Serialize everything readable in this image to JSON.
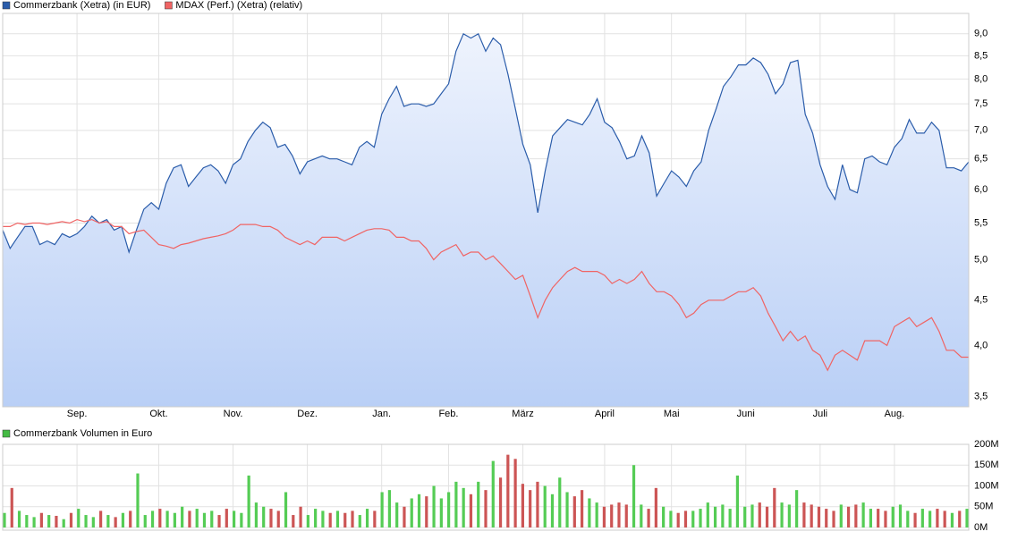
{
  "chart_data": [
    {
      "type": "line",
      "log_scale": true,
      "grid": true,
      "area_color_top": "#eef3fd",
      "area_color_bottom": "#b9cff6",
      "categories": [
        null,
        null,
        null,
        null,
        null,
        null,
        null,
        null,
        null,
        null,
        "Sep.",
        null,
        null,
        null,
        null,
        null,
        null,
        null,
        null,
        null,
        null,
        "Okt.",
        null,
        null,
        null,
        null,
        null,
        null,
        null,
        null,
        null,
        "Nov.",
        null,
        null,
        null,
        null,
        null,
        null,
        null,
        null,
        null,
        "Dez.",
        null,
        null,
        null,
        null,
        null,
        null,
        null,
        null,
        null,
        "Jan.",
        null,
        null,
        null,
        null,
        null,
        null,
        null,
        null,
        "Feb.",
        null,
        null,
        null,
        null,
        null,
        null,
        null,
        null,
        null,
        "März",
        null,
        null,
        null,
        null,
        null,
        null,
        null,
        null,
        null,
        null,
        "April",
        null,
        null,
        null,
        null,
        null,
        null,
        null,
        null,
        "Mai",
        null,
        null,
        null,
        null,
        null,
        null,
        null,
        null,
        null,
        "Juni",
        null,
        null,
        null,
        null,
        null,
        null,
        null,
        null,
        null,
        "Juli",
        null,
        null,
        null,
        null,
        null,
        null,
        null,
        null,
        null,
        "Aug.",
        null,
        null,
        null,
        null,
        null,
        null,
        null,
        null,
        null,
        null
      ],
      "series": [
        {
          "name": "Commerzbank (Xetra) (in EUR)",
          "color": "#2a5caa",
          "values": [
            5.4,
            5.15,
            5.3,
            5.45,
            5.45,
            5.2,
            5.25,
            5.2,
            5.35,
            5.3,
            5.35,
            5.45,
            5.6,
            5.5,
            5.55,
            5.4,
            5.45,
            5.1,
            5.4,
            5.7,
            5.8,
            5.7,
            6.1,
            6.35,
            6.4,
            6.05,
            6.2,
            6.35,
            6.4,
            6.3,
            6.1,
            6.4,
            6.5,
            6.8,
            7.0,
            7.15,
            7.05,
            6.7,
            6.75,
            6.55,
            6.25,
            6.45,
            6.5,
            6.55,
            6.5,
            6.5,
            6.45,
            6.4,
            6.7,
            6.8,
            6.7,
            7.3,
            7.6,
            7.85,
            7.45,
            7.5,
            7.5,
            7.45,
            7.5,
            7.7,
            7.9,
            8.6,
            9.0,
            8.9,
            9.0,
            8.6,
            8.9,
            8.75,
            8.1,
            7.4,
            6.75,
            6.4,
            5.65,
            6.3,
            6.9,
            7.05,
            7.2,
            7.15,
            7.1,
            7.3,
            7.6,
            7.15,
            7.05,
            6.8,
            6.5,
            6.55,
            6.9,
            6.6,
            5.9,
            6.1,
            6.3,
            6.2,
            6.05,
            6.3,
            6.45,
            7.0,
            7.4,
            7.85,
            8.05,
            8.3,
            8.3,
            8.45,
            8.35,
            8.1,
            7.7,
            7.9,
            8.35,
            8.4,
            7.3,
            6.95,
            6.4,
            6.05,
            5.85,
            6.4,
            6.0,
            5.95,
            6.5,
            6.55,
            6.45,
            6.4,
            6.7,
            6.85,
            7.2,
            6.95,
            6.95,
            7.15,
            7.0,
            6.35,
            6.35,
            6.3,
            6.45
          ]
        },
        {
          "name": "MDAX (Perf.) (Xetra) (relativ)",
          "color": "#f06464",
          "values": [
            5.45,
            5.45,
            5.5,
            5.48,
            5.5,
            5.5,
            5.48,
            5.5,
            5.52,
            5.5,
            5.55,
            5.52,
            5.55,
            5.5,
            5.52,
            5.45,
            5.45,
            5.35,
            5.38,
            5.4,
            5.3,
            5.2,
            5.18,
            5.15,
            5.2,
            5.22,
            5.25,
            5.28,
            5.3,
            5.32,
            5.35,
            5.4,
            5.48,
            5.48,
            5.48,
            5.45,
            5.45,
            5.4,
            5.3,
            5.25,
            5.2,
            5.25,
            5.2,
            5.3,
            5.3,
            5.3,
            5.25,
            5.3,
            5.35,
            5.4,
            5.42,
            5.42,
            5.4,
            5.3,
            5.3,
            5.25,
            5.25,
            5.15,
            5.0,
            5.1,
            5.15,
            5.2,
            5.05,
            5.1,
            5.1,
            5.0,
            5.05,
            4.95,
            4.85,
            4.75,
            4.8,
            4.55,
            4.3,
            4.5,
            4.65,
            4.75,
            4.85,
            4.9,
            4.85,
            4.85,
            4.85,
            4.8,
            4.7,
            4.75,
            4.7,
            4.75,
            4.85,
            4.7,
            4.6,
            4.6,
            4.55,
            4.45,
            4.3,
            4.35,
            4.45,
            4.5,
            4.5,
            4.5,
            4.55,
            4.6,
            4.6,
            4.65,
            4.55,
            4.35,
            4.2,
            4.05,
            4.15,
            4.05,
            4.1,
            3.95,
            3.9,
            3.75,
            3.9,
            3.95,
            3.9,
            3.85,
            4.05,
            4.05,
            4.05,
            4.0,
            4.2,
            4.25,
            4.3,
            4.2,
            4.25,
            4.3,
            4.15,
            3.95,
            3.95,
            3.88,
            3.88
          ]
        }
      ],
      "ylim": [
        3.41,
        9.49
      ],
      "yticks": [
        {
          "value": 3.5,
          "label": "3,5"
        },
        {
          "value": 4.0,
          "label": "4,0"
        },
        {
          "value": 4.5,
          "label": "4,5"
        },
        {
          "value": 5.0,
          "label": "5,0"
        },
        {
          "value": 5.5,
          "label": "5,5"
        },
        {
          "value": 6.0,
          "label": "6,0"
        },
        {
          "value": 6.5,
          "label": "6,5"
        },
        {
          "value": 7.0,
          "label": "7,0"
        },
        {
          "value": 7.5,
          "label": "7,5"
        },
        {
          "value": 8.0,
          "label": "8,0"
        },
        {
          "value": 8.5,
          "label": "8,5"
        },
        {
          "value": 9.0,
          "label": "9,0"
        }
      ]
    },
    {
      "type": "bar",
      "grid": true,
      "series": [
        {
          "name": "Commerzbank Volumen in Euro",
          "color": "#44bb44",
          "values": [
            35,
            95,
            40,
            30,
            25,
            35,
            30,
            28,
            20,
            35,
            45,
            30,
            25,
            40,
            30,
            25,
            35,
            40,
            130,
            30,
            40,
            45,
            40,
            35,
            50,
            40,
            45,
            35,
            40,
            30,
            45,
            40,
            35,
            125,
            60,
            50,
            45,
            40,
            85,
            30,
            50,
            30,
            45,
            40,
            35,
            40,
            35,
            40,
            30,
            45,
            40,
            85,
            90,
            60,
            50,
            70,
            80,
            75,
            100,
            70,
            85,
            110,
            95,
            80,
            110,
            90,
            160,
            120,
            175,
            165,
            105,
            90,
            110,
            100,
            80,
            120,
            85,
            75,
            90,
            70,
            60,
            50,
            55,
            60,
            55,
            150,
            55,
            45,
            95,
            50,
            40,
            35,
            40,
            40,
            45,
            60,
            50,
            55,
            45,
            125,
            50,
            55,
            60,
            50,
            95,
            60,
            55,
            90,
            60,
            55,
            50,
            45,
            40,
            55,
            50,
            55,
            60,
            45,
            45,
            40,
            50,
            55,
            40,
            35,
            45,
            40,
            45,
            40,
            35,
            40,
            45
          ],
          "colors": [
            "#5c5",
            "#c55",
            "#5c5",
            "#5c5",
            "#5c5",
            "#c55",
            "#5c5",
            "#c55",
            "#5c5",
            "#c55",
            "#5c5",
            "#5c5",
            "#5c5",
            "#c55",
            "#5c5",
            "#c55",
            "#5c5",
            "#c55",
            "#5c5",
            "#5c5",
            "#5c5",
            "#c55",
            "#5c5",
            "#5c5",
            "#5c5",
            "#c55",
            "#5c5",
            "#5c5",
            "#5c5",
            "#c55",
            "#c55",
            "#5c5",
            "#5c5",
            "#5c5",
            "#5c5",
            "#5c5",
            "#c55",
            "#c55",
            "#5c5",
            "#c55",
            "#c55",
            "#5c5",
            "#5c5",
            "#5c5",
            "#c55",
            "#5c5",
            "#c55",
            "#c55",
            "#5c5",
            "#5c5",
            "#c55",
            "#5c5",
            "#5c5",
            "#5c5",
            "#c55",
            "#5c5",
            "#5c5",
            "#c55",
            "#5c5",
            "#5c5",
            "#5c5",
            "#5c5",
            "#5c5",
            "#c55",
            "#5c5",
            "#c55",
            "#5c5",
            "#c55",
            "#c55",
            "#c55",
            "#c55",
            "#c55",
            "#c55",
            "#5c5",
            "#5c5",
            "#5c5",
            "#5c5",
            "#c55",
            "#c55",
            "#5c5",
            "#5c5",
            "#c55",
            "#c55",
            "#c55",
            "#c55",
            "#5c5",
            "#5c5",
            "#c55",
            "#c55",
            "#5c5",
            "#5c5",
            "#c55",
            "#c55",
            "#5c5",
            "#5c5",
            "#5c5",
            "#5c5",
            "#5c5",
            "#5c5",
            "#5c5",
            "#5c5",
            "#5c5",
            "#c55",
            "#c55",
            "#c55",
            "#5c5",
            "#5c5",
            "#5c5",
            "#c55",
            "#c55",
            "#c55",
            "#c55",
            "#c55",
            "#5c5",
            "#c55",
            "#c55",
            "#5c5",
            "#5c5",
            "#c55",
            "#c55",
            "#5c5",
            "#5c5",
            "#5c5",
            "#c55",
            "#5c5",
            "#5c5",
            "#c55",
            "#c55",
            "#5c5",
            "#c55",
            "#5c5"
          ]
        }
      ],
      "ylim": [
        0,
        200
      ],
      "yticks": [
        {
          "value": 0,
          "label": "0M"
        },
        {
          "value": 50,
          "label": "50M"
        },
        {
          "value": 100,
          "label": "100M"
        },
        {
          "value": 150,
          "label": "150M"
        },
        {
          "value": 200,
          "label": "200M"
        }
      ]
    }
  ]
}
